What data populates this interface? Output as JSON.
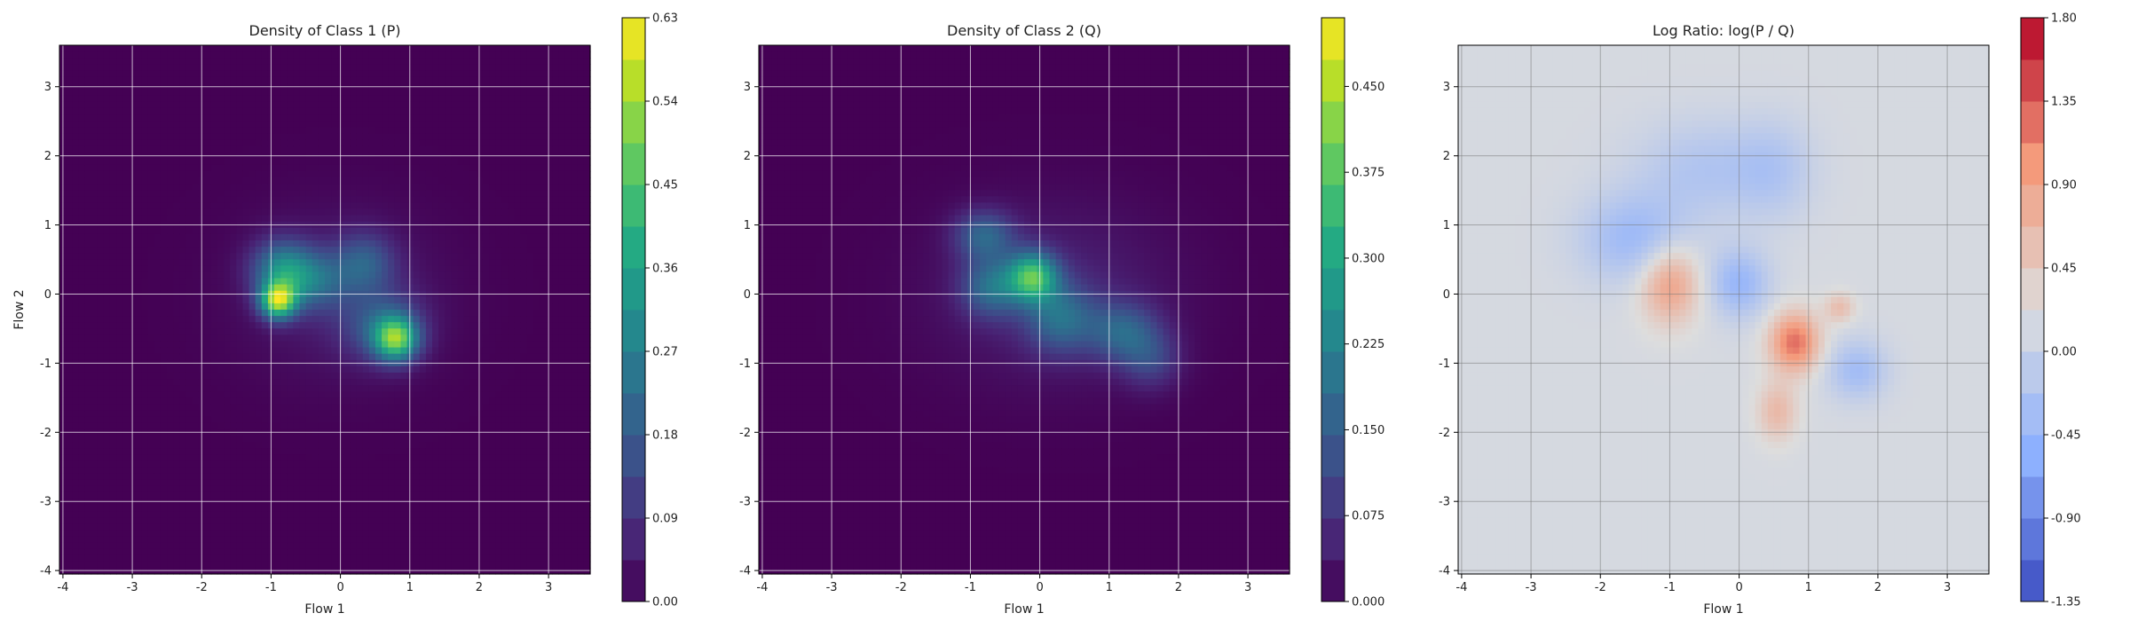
{
  "chart_data": [
    {
      "type": "heatmap",
      "title": "Density of Class 1 (P)",
      "xlabel": "Flow 1",
      "ylabel": "Flow 2",
      "xlim": [
        -4.05,
        3.6
      ],
      "ylim": [
        -4.05,
        3.6
      ],
      "xticks": [
        -4,
        -3,
        -2,
        -1,
        0,
        1,
        2,
        3
      ],
      "yticks": [
        -4,
        -3,
        -2,
        -1,
        0,
        1,
        2,
        3
      ],
      "grid": true,
      "colormap": "viridis",
      "colorbar": {
        "min": 0.0,
        "max": 0.63,
        "ticks": [
          "0.00",
          "0.09",
          "0.18",
          "0.27",
          "0.36",
          "0.45",
          "0.54",
          "0.63"
        ]
      },
      "blobs": [
        {
          "x": -0.9,
          "y": -0.1,
          "sx": 0.18,
          "sy": 0.18,
          "a": 0.48
        },
        {
          "x": -0.85,
          "y": 0.35,
          "sx": 0.3,
          "sy": 0.3,
          "a": 0.25
        },
        {
          "x": -0.4,
          "y": 0.2,
          "sx": 0.35,
          "sy": 0.3,
          "a": 0.18
        },
        {
          "x": 0.35,
          "y": 0.45,
          "sx": 0.3,
          "sy": 0.3,
          "a": 0.16
        },
        {
          "x": 0.8,
          "y": -0.65,
          "sx": 0.22,
          "sy": 0.22,
          "a": 0.42
        },
        {
          "x": 0.6,
          "y": -0.45,
          "sx": 0.4,
          "sy": 0.35,
          "a": 0.15
        },
        {
          "x": 0.0,
          "y": 0.0,
          "sx": 1.0,
          "sy": 0.85,
          "a": 0.05
        }
      ]
    },
    {
      "type": "heatmap",
      "title": "Density of Class 2 (Q)",
      "xlabel": "Flow 1",
      "ylabel": "",
      "xlim": [
        -4.05,
        3.6
      ],
      "ylim": [
        -4.05,
        3.6
      ],
      "xticks": [
        -4,
        -3,
        -2,
        -1,
        0,
        1,
        2,
        3
      ],
      "yticks": [
        -4,
        -3,
        -2,
        -1,
        0,
        1,
        2,
        3
      ],
      "grid": true,
      "colormap": "viridis",
      "colorbar": {
        "min": 0.0,
        "max": 0.51,
        "ticks": [
          "0.000",
          "0.075",
          "0.150",
          "0.225",
          "0.300",
          "0.375",
          "0.450"
        ]
      },
      "blobs": [
        {
          "x": -0.1,
          "y": 0.25,
          "sx": 0.25,
          "sy": 0.25,
          "a": 0.32
        },
        {
          "x": -0.8,
          "y": 0.85,
          "sx": 0.3,
          "sy": 0.25,
          "a": 0.15
        },
        {
          "x": -0.7,
          "y": 0.1,
          "sx": 0.3,
          "sy": 0.3,
          "a": 0.16
        },
        {
          "x": 0.3,
          "y": -0.35,
          "sx": 0.35,
          "sy": 0.35,
          "a": 0.15
        },
        {
          "x": 1.2,
          "y": -0.55,
          "sx": 0.35,
          "sy": 0.3,
          "a": 0.14
        },
        {
          "x": 1.6,
          "y": -0.95,
          "sx": 0.3,
          "sy": 0.3,
          "a": 0.09
        },
        {
          "x": 0.2,
          "y": 0.0,
          "sx": 1.2,
          "sy": 0.9,
          "a": 0.05
        }
      ]
    },
    {
      "type": "heatmap",
      "title": "Log Ratio: log(P / Q)",
      "xlabel": "Flow 1",
      "ylabel": "",
      "xlim": [
        -4.05,
        3.6
      ],
      "ylim": [
        -4.05,
        3.6
      ],
      "xticks": [
        -4,
        -3,
        -2,
        -1,
        0,
        1,
        2,
        3
      ],
      "yticks": [
        -4,
        -3,
        -2,
        -1,
        0,
        1,
        2,
        3
      ],
      "grid": true,
      "colormap": "coolwarm",
      "colorbar": {
        "min": -1.35,
        "max": 1.8,
        "ticks": [
          "-1.35",
          "-0.90",
          "-0.45",
          "0.00",
          "0.45",
          "0.90",
          "1.35",
          "1.80"
        ]
      },
      "background_value": 0.15,
      "blobs": [
        {
          "x": -1.0,
          "y": 0.15,
          "sx": 0.3,
          "sy": 0.4,
          "a": 0.8
        },
        {
          "x": 0.8,
          "y": -0.7,
          "sx": 0.25,
          "sy": 0.3,
          "a": 1.1
        },
        {
          "x": 0.55,
          "y": -1.7,
          "sx": 0.2,
          "sy": 0.3,
          "a": 0.5
        },
        {
          "x": 1.45,
          "y": -0.2,
          "sx": 0.15,
          "sy": 0.15,
          "a": 0.45
        },
        {
          "x": -1.5,
          "y": 0.8,
          "sx": 0.55,
          "sy": 0.45,
          "a": -0.55
        },
        {
          "x": 0.0,
          "y": 0.15,
          "sx": 0.3,
          "sy": 0.35,
          "a": -0.6
        },
        {
          "x": -0.5,
          "y": 1.8,
          "sx": 0.7,
          "sy": 0.5,
          "a": -0.35
        },
        {
          "x": 1.7,
          "y": -1.1,
          "sx": 0.3,
          "sy": 0.3,
          "a": -0.5
        },
        {
          "x": 0.5,
          "y": 1.8,
          "sx": 0.4,
          "sy": 0.5,
          "a": -0.3
        }
      ]
    }
  ]
}
